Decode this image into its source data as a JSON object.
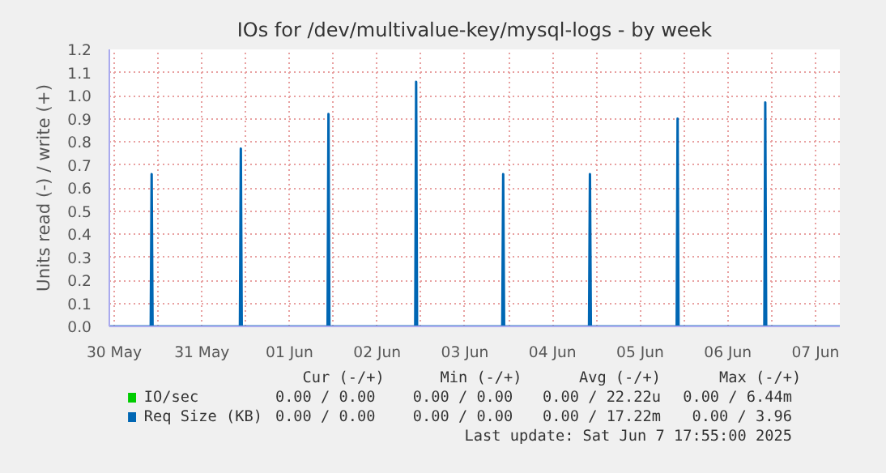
{
  "chart_data": {
    "type": "line",
    "title": "IOs for /dev/multivalue-key/mysql-logs - by week",
    "ylabel": "Units read (-) / write (+)",
    "xlim": [
      "2025-05-30T10:40",
      "2025-06-07T18:40"
    ],
    "ylim": [
      0,
      1.2
    ],
    "xticks": [
      {
        "value": "2025-05-30T12:00",
        "label": "30 May"
      },
      {
        "value": "2025-05-31T00:00",
        "label": null
      },
      {
        "value": "2025-05-31T12:00",
        "label": "31 May"
      },
      {
        "value": "2025-06-01T00:00",
        "label": null
      },
      {
        "value": "2025-06-01T12:00",
        "label": "01 Jun"
      },
      {
        "value": "2025-06-02T00:00",
        "label": null
      },
      {
        "value": "2025-06-02T12:00",
        "label": "02 Jun"
      },
      {
        "value": "2025-06-03T00:00",
        "label": null
      },
      {
        "value": "2025-06-03T12:00",
        "label": "03 Jun"
      },
      {
        "value": "2025-06-04T00:00",
        "label": null
      },
      {
        "value": "2025-06-04T12:00",
        "label": "04 Jun"
      },
      {
        "value": "2025-06-05T00:00",
        "label": null
      },
      {
        "value": "2025-06-05T12:00",
        "label": "05 Jun"
      },
      {
        "value": "2025-06-06T00:00",
        "label": null
      },
      {
        "value": "2025-06-06T12:00",
        "label": "06 Jun"
      },
      {
        "value": "2025-06-07T00:00",
        "label": null
      },
      {
        "value": "2025-06-07T12:00",
        "label": "07 Jun"
      }
    ],
    "yticks": [
      {
        "value": 0,
        "label": "0.0"
      },
      {
        "value": 0.1,
        "label": "0.1"
      },
      {
        "value": 0.2,
        "label": "0.2"
      },
      {
        "value": 0.3,
        "label": "0.3"
      },
      {
        "value": 0.4,
        "label": "0.4"
      },
      {
        "value": 0.5,
        "label": "0.5"
      },
      {
        "value": 0.6,
        "label": "0.6"
      },
      {
        "value": 0.7,
        "label": "0.7"
      },
      {
        "value": 0.8,
        "label": "0.8"
      },
      {
        "value": 0.9,
        "label": "0.9"
      },
      {
        "value": 1.0,
        "label": "1.0"
      },
      {
        "value": 1.1,
        "label": "1.1"
      },
      {
        "value": 1.2,
        "label": "1.2"
      }
    ],
    "grid": true,
    "legend": "bottom",
    "marker": "none",
    "line_style": "solid",
    "series": [
      {
        "name": "IO/sec",
        "color": "#00cc00"
      },
      {
        "name": "Req Size (KB)",
        "color": "#0066b3",
        "x": [
          "2025-05-30T10:40",
          "2025-05-30T22:00",
          "2025-05-30T22:15",
          "2025-05-30T22:30",
          "2025-05-31T22:25",
          "2025-05-31T22:40",
          "2025-05-31T22:55",
          "2025-06-01T22:25",
          "2025-06-01T22:40",
          "2025-06-01T22:55",
          "2025-06-02T22:25",
          "2025-06-02T22:40",
          "2025-06-02T22:55",
          "2025-06-03T22:15",
          "2025-06-03T22:30",
          "2025-06-03T22:45",
          "2025-06-04T22:00",
          "2025-06-04T22:15",
          "2025-06-04T22:30",
          "2025-06-05T22:00",
          "2025-06-05T22:15",
          "2025-06-05T22:30",
          "2025-06-06T22:00",
          "2025-06-06T22:15",
          "2025-06-06T22:30",
          "2025-06-07T18:40"
        ],
        "values": [
          0,
          0,
          0.66,
          0,
          0,
          0.77,
          0,
          0,
          0.92,
          0,
          0,
          1.06,
          0,
          0,
          0.66,
          0,
          0,
          0.66,
          0,
          0,
          0.9,
          0,
          0,
          0.97,
          0,
          0
        ]
      }
    ],
    "annotations": [
      "Cur (-/+)",
      "Min (-/+)",
      "Avg (-/+)",
      "Max (-/+)",
      "0.00 /  0.00",
      "0.00 /  0.00",
      "0.00 / 22.22u",
      "0.00 /  6.44m",
      "0.00 /  0.00",
      "0.00 /  0.00",
      "0.00 / 17.22m",
      "0.00 /  3.96",
      "Last update: Sat Jun  7 17:55:00 2025"
    ]
  }
}
